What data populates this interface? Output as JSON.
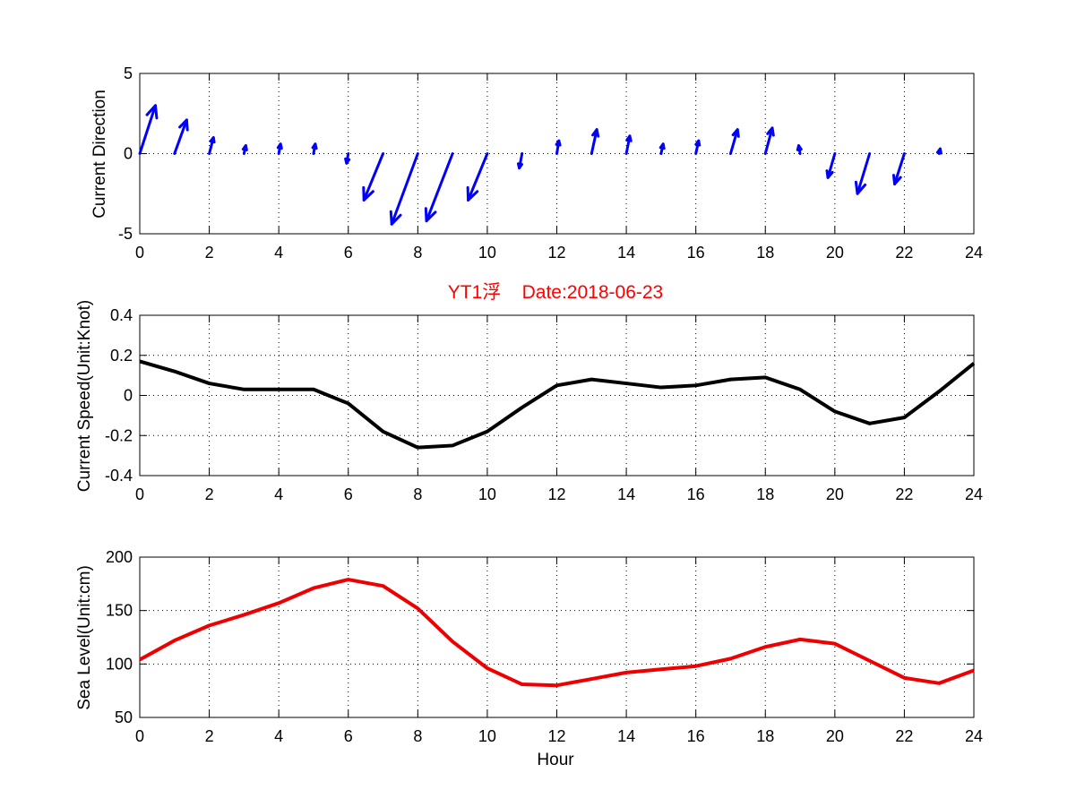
{
  "figure": {
    "title": "YT1浮    Date:2018-06-23",
    "title_color": "#ff0000"
  },
  "chart_data": [
    {
      "type": "quiver",
      "id": "direction",
      "xlabel": "",
      "ylabel": "Current Direction",
      "xlim": [
        0,
        24
      ],
      "ylim": [
        -5,
        5
      ],
      "xticks": [
        0,
        2,
        4,
        6,
        8,
        10,
        12,
        14,
        16,
        18,
        20,
        22,
        24
      ],
      "yticks": [
        -5,
        0,
        5
      ],
      "grid": true,
      "color": "#0000ff",
      "x": [
        0,
        1,
        2,
        3,
        4,
        5,
        6,
        7,
        8,
        9,
        10,
        11,
        12,
        13,
        14,
        15,
        16,
        17,
        18,
        19,
        20,
        21,
        22,
        23
      ],
      "y": [
        0,
        0,
        0,
        0,
        0,
        0,
        0,
        0,
        0,
        0,
        0,
        0,
        0,
        0,
        0,
        0,
        0,
        0,
        0,
        0,
        0,
        0,
        0,
        0
      ],
      "u": [
        0.45,
        0.35,
        0.12,
        0.05,
        0.05,
        0.05,
        -0.05,
        -0.55,
        -0.75,
        -0.75,
        -0.55,
        -0.08,
        0.06,
        0.15,
        0.1,
        0.06,
        0.08,
        0.2,
        0.2,
        -0.04,
        -0.2,
        -0.35,
        -0.28,
        0.03
      ],
      "v": [
        3.0,
        2.1,
        1.0,
        0.5,
        0.6,
        0.6,
        -0.6,
        -2.9,
        -4.4,
        -4.2,
        -2.9,
        -0.9,
        0.8,
        1.5,
        1.1,
        0.6,
        0.8,
        1.5,
        1.6,
        0.5,
        -1.5,
        -2.5,
        -1.9,
        0.3
      ]
    },
    {
      "type": "line",
      "id": "speed",
      "xlabel": "",
      "ylabel": "Current Speed(Unit:Knot)",
      "xlim": [
        0,
        24
      ],
      "ylim": [
        -0.4,
        0.4
      ],
      "xticks": [
        0,
        2,
        4,
        6,
        8,
        10,
        12,
        14,
        16,
        18,
        20,
        22,
        24
      ],
      "yticks": [
        -0.4,
        -0.2,
        0,
        0.2,
        0.4
      ],
      "ytick_labels": [
        "-0.4",
        "-0.2",
        "0",
        "0.2",
        "0.4"
      ],
      "grid": true,
      "color": "#000000",
      "x": [
        0,
        1,
        2,
        3,
        4,
        5,
        6,
        7,
        8,
        9,
        10,
        11,
        12,
        13,
        14,
        15,
        16,
        17,
        18,
        19,
        20,
        21,
        22,
        23,
        24
      ],
      "y": [
        0.17,
        0.12,
        0.06,
        0.03,
        0.03,
        0.03,
        -0.04,
        -0.18,
        -0.26,
        -0.25,
        -0.18,
        -0.06,
        0.05,
        0.08,
        0.06,
        0.04,
        0.05,
        0.08,
        0.09,
        0.03,
        -0.08,
        -0.14,
        -0.11,
        0.02,
        0.16
      ]
    },
    {
      "type": "line",
      "id": "sealevel",
      "xlabel": "Hour",
      "ylabel": "Sea Level(Unit:cm)",
      "xlim": [
        0,
        24
      ],
      "ylim": [
        50,
        200
      ],
      "xticks": [
        0,
        2,
        4,
        6,
        8,
        10,
        12,
        14,
        16,
        18,
        20,
        22,
        24
      ],
      "yticks": [
        50,
        100,
        150,
        200
      ],
      "grid": true,
      "color": "#ee0000",
      "x": [
        0,
        1,
        2,
        3,
        4,
        5,
        6,
        7,
        8,
        9,
        10,
        11,
        12,
        13,
        14,
        15,
        16,
        17,
        18,
        19,
        20,
        21,
        22,
        23,
        24
      ],
      "y": [
        104,
        122,
        136,
        146,
        157,
        171,
        179,
        173,
        152,
        121,
        96,
        81,
        80,
        86,
        92,
        95,
        98,
        105,
        116,
        123,
        119,
        103,
        87,
        82,
        94
      ]
    }
  ]
}
